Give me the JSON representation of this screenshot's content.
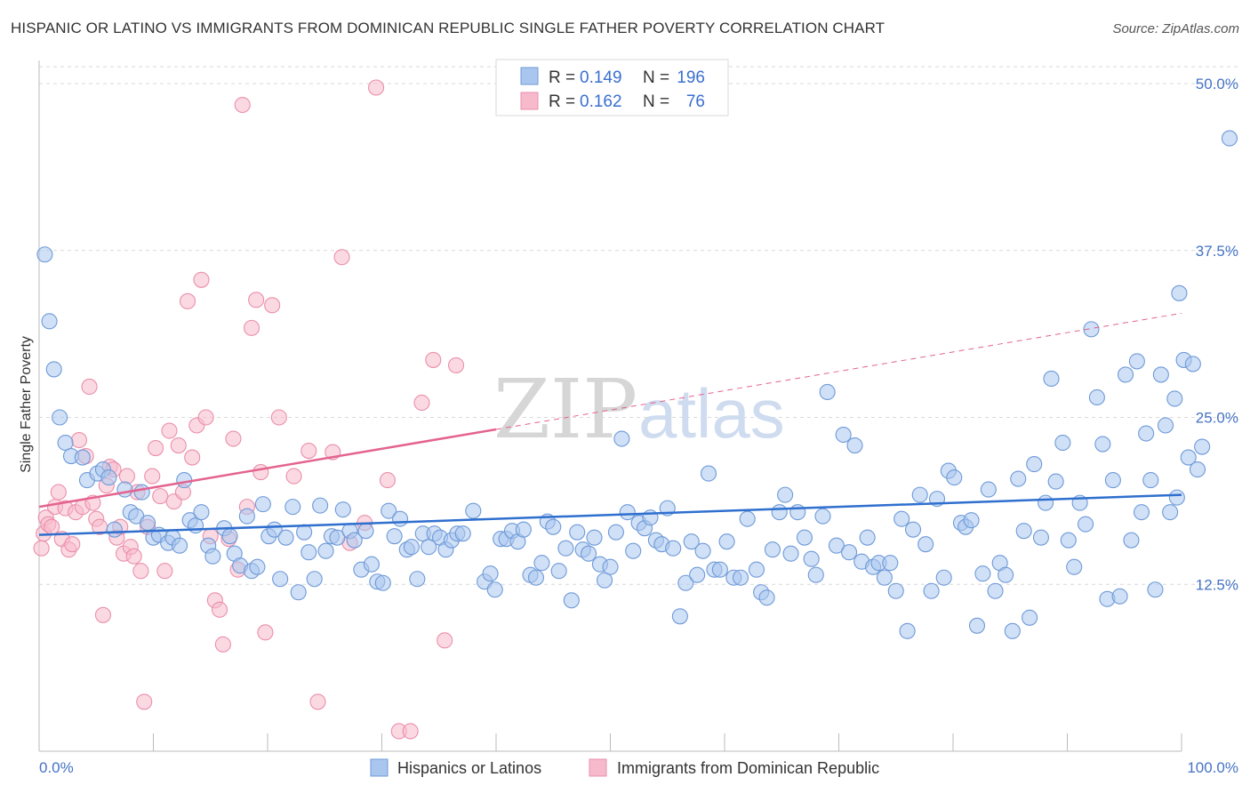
{
  "header": {
    "title": "HISPANIC OR LATINO VS IMMIGRANTS FROM DOMINICAN REPUBLIC SINGLE FATHER POVERTY CORRELATION CHART",
    "source": "Source: ZipAtlas.com"
  },
  "watermark": {
    "zip": "ZIP",
    "atlas": "atlas"
  },
  "legend": {
    "r_label": "R =",
    "n_label": "N =",
    "rows": [
      {
        "r": "0.149",
        "n": "196"
      },
      {
        "r": "0.162",
        "n": "76"
      }
    ]
  },
  "colors": {
    "blue_fill": "#a9c6ee",
    "blue_stroke": "#6f9ad8",
    "blue_line": "#2f6fce",
    "pink_fill": "#f7b9cc",
    "pink_stroke": "#ea8fab",
    "pink_line": "#e4638f",
    "grid": "#d9d9d9"
  },
  "chart_data": {
    "type": "scatter",
    "title": "HISPANIC OR LATINO VS IMMIGRANTS FROM DOMINICAN REPUBLIC SINGLE FATHER POVERTY CORRELATION CHART",
    "xlabel": "",
    "ylabel": "Single Father Poverty",
    "xlim": [
      0,
      100
    ],
    "ylim": [
      0,
      50
    ],
    "x_tick_labels": [
      "0.0%",
      "100.0%"
    ],
    "y_tick_labels": [
      "12.5%",
      "25.0%",
      "37.5%",
      "50.0%"
    ],
    "y_ticks": [
      12.5,
      25,
      37.5,
      50
    ],
    "grid": "horizontal dashed",
    "legend_position": "top-center",
    "bottom_legend": [
      "Hispanics or Latinos",
      "Immigrants from Dominican Republic"
    ],
    "series": [
      {
        "name": "Hispanics or Latinos",
        "r": 0.149,
        "n": 196,
        "trend": {
          "x": [
            0,
            100
          ],
          "y": [
            16.2,
            19.2
          ],
          "style": "solid"
        },
        "points": [
          [
            0.5,
            37.2
          ],
          [
            0.9,
            32.2
          ],
          [
            1.3,
            28.6
          ],
          [
            1.8,
            25.0
          ],
          [
            2.3,
            23.1
          ],
          [
            2.8,
            22.1
          ],
          [
            3.8,
            22.0
          ],
          [
            4.2,
            20.3
          ],
          [
            5.1,
            20.8
          ],
          [
            5.6,
            21.1
          ],
          [
            6.1,
            20.5
          ],
          [
            6.6,
            16.6
          ],
          [
            7.5,
            19.6
          ],
          [
            8.0,
            17.9
          ],
          [
            8.5,
            17.6
          ],
          [
            9.0,
            19.4
          ],
          [
            9.5,
            17.1
          ],
          [
            10.0,
            16.0
          ],
          [
            10.5,
            16.2
          ],
          [
            11.3,
            15.6
          ],
          [
            11.7,
            16.0
          ],
          [
            12.3,
            15.4
          ],
          [
            12.7,
            20.3
          ],
          [
            13.2,
            17.3
          ],
          [
            13.7,
            16.9
          ],
          [
            14.2,
            17.9
          ],
          [
            14.8,
            15.4
          ],
          [
            15.2,
            14.6
          ],
          [
            16.2,
            16.7
          ],
          [
            16.7,
            16.1
          ],
          [
            17.1,
            14.8
          ],
          [
            17.6,
            13.9
          ],
          [
            18.2,
            17.6
          ],
          [
            18.6,
            13.5
          ],
          [
            19.1,
            13.8
          ],
          [
            19.6,
            18.5
          ],
          [
            20.1,
            16.1
          ],
          [
            20.6,
            16.6
          ],
          [
            21.1,
            12.9
          ],
          [
            21.6,
            16.0
          ],
          [
            22.2,
            18.3
          ],
          [
            22.7,
            11.9
          ],
          [
            23.2,
            16.4
          ],
          [
            23.6,
            14.9
          ],
          [
            24.1,
            12.9
          ],
          [
            24.6,
            18.4
          ],
          [
            25.1,
            15.0
          ],
          [
            25.6,
            16.1
          ],
          [
            26.1,
            16.0
          ],
          [
            26.6,
            18.1
          ],
          [
            27.2,
            16.5
          ],
          [
            27.6,
            15.8
          ],
          [
            28.2,
            13.6
          ],
          [
            28.6,
            16.5
          ],
          [
            29.1,
            14.0
          ],
          [
            29.6,
            12.7
          ],
          [
            30.1,
            12.6
          ],
          [
            30.6,
            18.0
          ],
          [
            31.1,
            16.1
          ],
          [
            31.6,
            17.4
          ],
          [
            32.2,
            15.1
          ],
          [
            32.6,
            15.3
          ],
          [
            33.1,
            12.9
          ],
          [
            33.6,
            16.3
          ],
          [
            34.1,
            15.3
          ],
          [
            34.6,
            16.3
          ],
          [
            35.1,
            16.0
          ],
          [
            35.6,
            15.1
          ],
          [
            36.1,
            15.8
          ],
          [
            36.6,
            16.3
          ],
          [
            37.1,
            16.3
          ],
          [
            38.0,
            18.0
          ],
          [
            39.0,
            12.7
          ],
          [
            39.5,
            13.3
          ],
          [
            39.9,
            12.1
          ],
          [
            40.4,
            15.9
          ],
          [
            40.9,
            15.9
          ],
          [
            41.4,
            16.5
          ],
          [
            41.9,
            15.7
          ],
          [
            42.4,
            16.6
          ],
          [
            43.0,
            13.2
          ],
          [
            43.5,
            13.0
          ],
          [
            44.0,
            14.1
          ],
          [
            44.5,
            17.2
          ],
          [
            45.0,
            16.8
          ],
          [
            45.5,
            13.5
          ],
          [
            46.1,
            15.2
          ],
          [
            46.6,
            11.3
          ],
          [
            47.1,
            16.4
          ],
          [
            47.6,
            15.1
          ],
          [
            48.1,
            14.8
          ],
          [
            48.6,
            16.0
          ],
          [
            49.1,
            14.0
          ],
          [
            49.5,
            12.8
          ],
          [
            50.0,
            13.8
          ],
          [
            50.5,
            16.4
          ],
          [
            51.0,
            23.4
          ],
          [
            51.5,
            17.9
          ],
          [
            52.0,
            15.0
          ],
          [
            52.5,
            17.1
          ],
          [
            53.0,
            16.7
          ],
          [
            53.5,
            17.5
          ],
          [
            54.0,
            15.8
          ],
          [
            54.5,
            15.5
          ],
          [
            55.0,
            18.2
          ],
          [
            55.5,
            15.2
          ],
          [
            56.1,
            10.1
          ],
          [
            56.6,
            12.6
          ],
          [
            57.1,
            15.7
          ],
          [
            57.6,
            13.2
          ],
          [
            58.1,
            15.0
          ],
          [
            58.6,
            20.8
          ],
          [
            59.1,
            13.6
          ],
          [
            59.6,
            13.6
          ],
          [
            60.2,
            15.7
          ],
          [
            60.8,
            13.0
          ],
          [
            61.4,
            13.0
          ],
          [
            62.0,
            17.4
          ],
          [
            62.8,
            13.6
          ],
          [
            63.2,
            11.9
          ],
          [
            63.7,
            11.5
          ],
          [
            64.2,
            15.1
          ],
          [
            64.8,
            17.9
          ],
          [
            65.3,
            19.2
          ],
          [
            65.8,
            14.8
          ],
          [
            66.4,
            17.9
          ],
          [
            67.0,
            16.0
          ],
          [
            67.6,
            14.4
          ],
          [
            68.0,
            13.2
          ],
          [
            68.6,
            17.6
          ],
          [
            69.0,
            26.9
          ],
          [
            69.8,
            15.4
          ],
          [
            70.4,
            23.7
          ],
          [
            70.9,
            14.9
          ],
          [
            71.4,
            22.9
          ],
          [
            72.0,
            14.2
          ],
          [
            72.5,
            16.0
          ],
          [
            73.0,
            13.8
          ],
          [
            73.5,
            14.1
          ],
          [
            74.0,
            13.0
          ],
          [
            74.5,
            14.1
          ],
          [
            75.0,
            12.0
          ],
          [
            75.5,
            17.4
          ],
          [
            76.0,
            9.0
          ],
          [
            76.5,
            16.6
          ],
          [
            77.1,
            19.2
          ],
          [
            77.6,
            15.5
          ],
          [
            78.1,
            12.0
          ],
          [
            78.6,
            18.9
          ],
          [
            79.2,
            13.0
          ],
          [
            79.6,
            21.0
          ],
          [
            80.1,
            20.5
          ],
          [
            80.7,
            17.1
          ],
          [
            81.1,
            16.8
          ],
          [
            81.6,
            17.3
          ],
          [
            82.1,
            9.4
          ],
          [
            82.6,
            13.3
          ],
          [
            83.1,
            19.6
          ],
          [
            83.7,
            12.0
          ],
          [
            84.1,
            14.1
          ],
          [
            84.6,
            13.2
          ],
          [
            85.2,
            9.0
          ],
          [
            85.7,
            20.4
          ],
          [
            86.2,
            16.5
          ],
          [
            86.7,
            10.0
          ],
          [
            87.1,
            21.5
          ],
          [
            87.7,
            16.0
          ],
          [
            88.1,
            18.6
          ],
          [
            88.6,
            27.9
          ],
          [
            89.0,
            20.2
          ],
          [
            89.6,
            23.1
          ],
          [
            90.1,
            15.8
          ],
          [
            90.6,
            13.8
          ],
          [
            91.1,
            18.6
          ],
          [
            91.6,
            17.0
          ],
          [
            92.1,
            31.6
          ],
          [
            92.6,
            26.5
          ],
          [
            93.1,
            23.0
          ],
          [
            93.5,
            11.4
          ],
          [
            94.0,
            20.3
          ],
          [
            94.6,
            11.6
          ],
          [
            95.1,
            28.2
          ],
          [
            95.6,
            15.8
          ],
          [
            96.1,
            29.2
          ],
          [
            96.5,
            17.9
          ],
          [
            96.9,
            23.8
          ],
          [
            97.3,
            20.3
          ],
          [
            97.7,
            12.1
          ],
          [
            98.2,
            28.2
          ],
          [
            98.6,
            24.4
          ],
          [
            99.0,
            17.9
          ],
          [
            99.4,
            26.4
          ],
          [
            99.8,
            34.3
          ],
          [
            100.2,
            29.3
          ],
          [
            100.6,
            22.0
          ],
          [
            101.0,
            29.0
          ],
          [
            101.4,
            21.1
          ],
          [
            101.8,
            22.8
          ],
          [
            99.6,
            19.0
          ],
          [
            104.2,
            45.9
          ]
        ]
      },
      {
        "name": "Immigrants from Dominican Republic",
        "r": 0.162,
        "n": 76,
        "trend": {
          "x": [
            0,
            40
          ],
          "y": [
            18.3,
            24.1
          ],
          "style": "solid",
          "extended": {
            "x": [
              40,
              100
            ],
            "y": [
              24.1,
              32.8
            ],
            "style": "dashed"
          }
        },
        "points": [
          [
            0.2,
            15.2
          ],
          [
            0.4,
            16.3
          ],
          [
            0.6,
            17.5
          ],
          [
            0.8,
            17.0
          ],
          [
            1.1,
            16.8
          ],
          [
            1.4,
            18.3
          ],
          [
            1.7,
            19.4
          ],
          [
            2.0,
            15.9
          ],
          [
            2.3,
            18.2
          ],
          [
            2.6,
            15.1
          ],
          [
            2.9,
            15.5
          ],
          [
            3.2,
            17.9
          ],
          [
            3.5,
            23.3
          ],
          [
            3.8,
            18.3
          ],
          [
            4.1,
            22.1
          ],
          [
            4.4,
            27.3
          ],
          [
            4.7,
            18.6
          ],
          [
            5.0,
            17.4
          ],
          [
            5.3,
            16.8
          ],
          [
            5.6,
            10.2
          ],
          [
            5.9,
            19.9
          ],
          [
            6.2,
            21.3
          ],
          [
            6.5,
            21.1
          ],
          [
            6.8,
            16.0
          ],
          [
            7.1,
            16.8
          ],
          [
            7.4,
            14.8
          ],
          [
            7.7,
            20.6
          ],
          [
            8.0,
            15.3
          ],
          [
            8.3,
            14.6
          ],
          [
            8.6,
            19.4
          ],
          [
            8.9,
            13.5
          ],
          [
            9.2,
            3.7
          ],
          [
            9.5,
            16.8
          ],
          [
            9.9,
            20.6
          ],
          [
            10.2,
            22.7
          ],
          [
            10.6,
            19.1
          ],
          [
            11.0,
            13.5
          ],
          [
            11.4,
            24.0
          ],
          [
            11.8,
            18.7
          ],
          [
            12.2,
            22.9
          ],
          [
            12.6,
            19.4
          ],
          [
            13.0,
            33.7
          ],
          [
            13.4,
            22.0
          ],
          [
            13.8,
            24.4
          ],
          [
            14.2,
            35.3
          ],
          [
            14.6,
            25.0
          ],
          [
            15.0,
            16.1
          ],
          [
            15.4,
            11.3
          ],
          [
            15.8,
            10.6
          ],
          [
            16.1,
            8.0
          ],
          [
            16.6,
            15.9
          ],
          [
            17.0,
            23.4
          ],
          [
            17.4,
            13.6
          ],
          [
            17.8,
            48.4
          ],
          [
            18.2,
            18.3
          ],
          [
            18.6,
            31.7
          ],
          [
            19.0,
            33.8
          ],
          [
            19.4,
            20.9
          ],
          [
            19.8,
            8.9
          ],
          [
            20.4,
            33.4
          ],
          [
            21.0,
            25.0
          ],
          [
            22.3,
            20.6
          ],
          [
            23.6,
            22.5
          ],
          [
            24.4,
            3.7
          ],
          [
            25.7,
            22.4
          ],
          [
            26.5,
            37.0
          ],
          [
            27.2,
            15.6
          ],
          [
            28.5,
            17.1
          ],
          [
            29.5,
            49.7
          ],
          [
            30.5,
            20.3
          ],
          [
            31.5,
            1.5
          ],
          [
            32.5,
            1.5
          ],
          [
            33.5,
            26.1
          ],
          [
            34.5,
            29.3
          ],
          [
            35.5,
            8.3
          ],
          [
            36.5,
            28.9
          ]
        ]
      }
    ]
  }
}
